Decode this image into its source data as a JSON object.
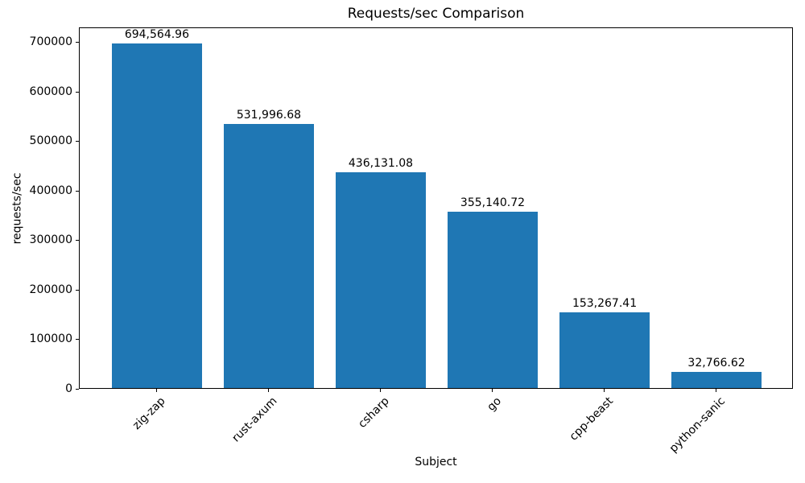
{
  "chart_data": {
    "type": "bar",
    "title": "Requests/sec Comparison",
    "xlabel": "Subject",
    "ylabel": "requests/sec",
    "categories": [
      "zig-zap",
      "rust-axum",
      "csharp",
      "go",
      "cpp-beast",
      "python-sanic"
    ],
    "values": [
      694564.96,
      531996.68,
      436131.08,
      355140.72,
      153267.41,
      32766.62
    ],
    "value_labels": [
      "694,564.96",
      "531,996.68",
      "436,131.08",
      "355,140.72",
      "153,267.41",
      "32,766.62"
    ],
    "y_ticks": [
      0,
      100000,
      200000,
      300000,
      400000,
      500000,
      600000,
      700000
    ],
    "y_tick_labels": [
      "0",
      "100000",
      "200000",
      "300000",
      "400000",
      "500000",
      "600000",
      "700000"
    ],
    "ylim": [
      0,
      729293
    ],
    "xlim": [
      -0.69,
      5.69
    ],
    "bar_width_units": 0.8,
    "x_tick_rotation_deg": 45,
    "bar_color": "#1f77b4",
    "grid": false,
    "legend": null
  }
}
